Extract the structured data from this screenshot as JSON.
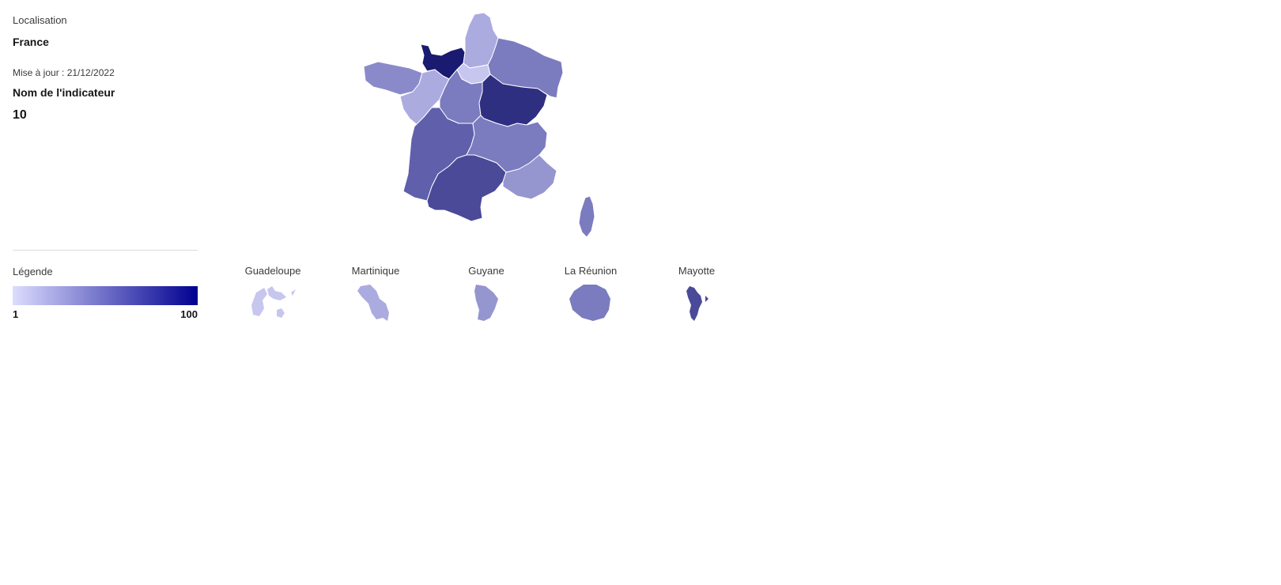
{
  "localisation": {
    "label": "Localisation",
    "value": "France"
  },
  "update": "Mise à jour : 21/12/2022",
  "indicator": {
    "name": "Nom de l'indicateur",
    "value": "10"
  },
  "legend": {
    "title": "Légende",
    "min": "1",
    "max": "100",
    "gradient_start": "#dcdcff",
    "gradient_end": "#000091"
  },
  "overseas": [
    {
      "name": "Guadeloupe",
      "color": "#c6c6ef"
    },
    {
      "name": "Martinique",
      "color": "#ababe0"
    },
    {
      "name": "Guyane",
      "color": "#9595cf"
    },
    {
      "name": "La Réunion",
      "color": "#7b7bbf"
    },
    {
      "name": "Mayotte",
      "color": "#4a4a99"
    }
  ],
  "regions_colors": {
    "hauts-de-france": "#ababe0",
    "normandie": "#1a1a70",
    "ile-de-france": "#c6c6ef",
    "grand-est": "#7b7bbf",
    "bretagne": "#8a8acb",
    "pays-de-la-loire": "#ababe0",
    "centre-val-de-loire": "#7b7bbf",
    "bourgogne-franche-comte": "#2f2f82",
    "nouvelle-aquitaine": "#5f5fab",
    "auvergne-rhone-alpes": "#7b7bbf",
    "occitanie": "#4a4a99",
    "paca": "#9595cf",
    "corse": "#7b7bbf"
  }
}
